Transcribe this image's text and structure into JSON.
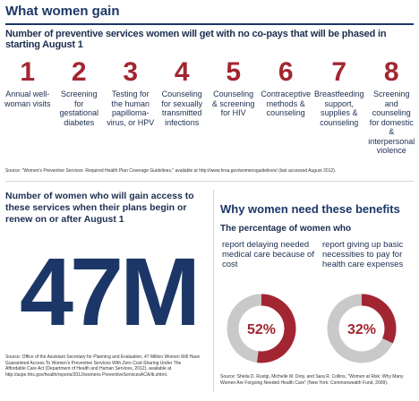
{
  "header": {
    "title": "What women gain",
    "subtitle": "Number of preventive services women will get with no co-pays that will be phased in starting August 1"
  },
  "services": [
    {
      "num": "1",
      "label": "Annual well-woman visits"
    },
    {
      "num": "2",
      "label": "Screening for gestational diabetes"
    },
    {
      "num": "3",
      "label": "Testing for the human papilloma-virus, or HPV"
    },
    {
      "num": "4",
      "label": "Counseling for sexually transmitted infections"
    },
    {
      "num": "5",
      "label": "Counseling & screening for HIV"
    },
    {
      "num": "6",
      "label": "Contraceptive methods & counseling"
    },
    {
      "num": "7",
      "label": "Breastfeeding support, supplies & counseling"
    },
    {
      "num": "8",
      "label": "Screening and counseling for domestic & interpersonal violence"
    }
  ],
  "source_top": "Source: \"Women's Preventive Services: Required Health Plan Coverage Guidelines,\" available at http://www.hrsa.gov/womensguidelines/ (last accessed August 2012).",
  "left": {
    "heading": "Number of women who will gain access to these services when their plans begin or renew on or after August 1",
    "big_number": "47M",
    "source": "Source: Office of the Assistant Secretary for Planning and Evaluation, 47 Million Women Will Have Guaranteed Access To Women's Preventive Services With Zero Cost-Sharing Under The Affordable Care Act (Department of Health and Human Services, 2012), available at http://aspe.hhs.gov/health/reports/2012/womens PreventiveServicesACA/ib.shtml."
  },
  "right": {
    "heading": "Why women need these benefits",
    "subheading": "The percentage of women who",
    "stats": [
      {
        "text": "report delaying needed medical care because of cost",
        "percent_label": "52%",
        "value": 52
      },
      {
        "text": "report giving up basic necessities to pay for health care expenses",
        "percent_label": "32%",
        "value": 32
      }
    ],
    "source": "Source: Sheila D. Rustgi, Michelle M. Doty, and Sara R. Collins, \"Women at Risk: Why Many Women Are Forgoing Needed Health Care\" (New York: Commonwealth Fund, 2009)."
  },
  "colors": {
    "accent_red": "#a22631",
    "navy": "#1c3767",
    "ring_gray": "#c9c9c9"
  }
}
